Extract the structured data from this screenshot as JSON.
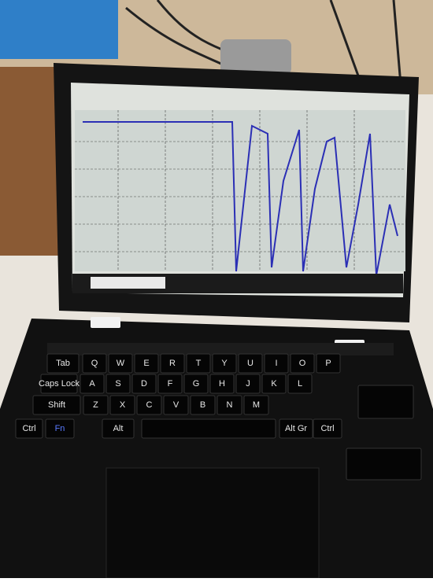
{
  "keyboard": {
    "rows": [
      [
        "Tab",
        "Q",
        "W",
        "E",
        "R",
        "T",
        "Y",
        "U",
        "I",
        "O",
        "P"
      ],
      [
        "Caps Lock",
        "A",
        "S",
        "D",
        "F",
        "G",
        "H",
        "J",
        "K",
        "L"
      ],
      [
        "Shift",
        "Z",
        "X",
        "C",
        "V",
        "B",
        "N",
        "M"
      ],
      [
        "Ctrl",
        "Fn",
        "Alt",
        "Alt Gr",
        "Ctrl"
      ]
    ]
  }
}
